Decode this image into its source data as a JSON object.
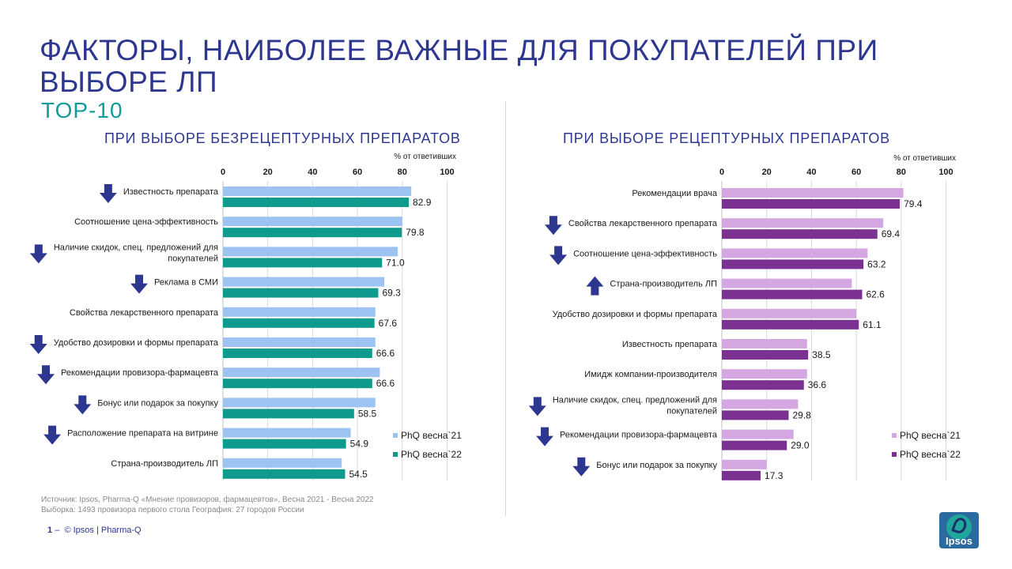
{
  "slide": {
    "title": "ФАКТОРЫ, НАИБОЛЕЕ ВАЖНЫЕ ДЛЯ ПОКУПАТЕЛЕЙ ПРИ ВЫБОРЕ ЛП",
    "subtitle": "TOP-10",
    "source": "Источник: Ipsos, Pharma-Q «Мнение провизоров, фармацевтов», Весна 2021 - Весна 2022",
    "sample": "Выборка: 1493 провизора первого стола  География: 27 городов России",
    "page_number": "1",
    "footer_sep": "–",
    "footer": "© Ipsos | Pharma-Q",
    "logo_text": "Ipsos"
  },
  "chart_data": [
    {
      "type": "bar",
      "orientation": "horizontal",
      "title": "ПРИ ВЫБОРЕ БЕЗРЕЦЕПТУРНЫХ ПРЕПАРАТОВ",
      "axis_unit": "%  от ответивших",
      "xlim": [
        0,
        100
      ],
      "ticks": [
        "0",
        "20",
        "40",
        "60",
        "80",
        "100"
      ],
      "grid": true,
      "legend_position": "bottom-right",
      "categories": [
        "Известность препарата",
        "Соотношение цена-эффективность",
        "Наличие скидок, спец. предложений для покупателей",
        "Реклама в СМИ",
        "Свойства лекарственного препарата",
        "Удобство дозировки и формы препарата",
        "Рекомендации провизора-фармацевта",
        "Бонус или подарок за покупку",
        "Расположение препарата на витрине",
        "Страна-производитель ЛП"
      ],
      "category_lines": [
        [
          "Известность препарата"
        ],
        [
          "Соотношение цена-эффективность"
        ],
        [
          "Наличие скидок, спец. предложений для",
          "покупателей"
        ],
        [
          "Реклама в СМИ"
        ],
        [
          "Свойства лекарственного препарата"
        ],
        [
          "Удобство дозировки и формы препарата"
        ],
        [
          "Рекомендации провизора-фармацевта"
        ],
        [
          "Бонус или подарок за покупку"
        ],
        [
          "Расположение препарата на витрине"
        ],
        [
          "Страна-производитель ЛП"
        ]
      ],
      "trend": [
        "down",
        "none",
        "down",
        "down",
        "none",
        "down",
        "down",
        "down",
        "down",
        "none"
      ],
      "series": [
        {
          "name": "PhQ весна`21",
          "color": "#9dc3f3",
          "values": [
            84,
            80,
            78,
            72,
            68,
            68,
            70,
            68,
            57,
            53
          ]
        },
        {
          "name": "PhQ весна`22",
          "color": "#0f9a8e",
          "values": [
            82.9,
            79.8,
            71.0,
            69.3,
            67.6,
            66.6,
            66.6,
            58.5,
            54.9,
            54.5
          ],
          "labels": [
            "82.9",
            "79.8",
            "71.0",
            "69.3",
            "67.6",
            "66.6",
            "66.6",
            "58.5",
            "54.9",
            "54.5"
          ]
        }
      ]
    },
    {
      "type": "bar",
      "orientation": "horizontal",
      "title": "ПРИ ВЫБОРЕ РЕЦЕПТУРНЫХ ПРЕПАРАТОВ",
      "axis_unit": "%  от ответивших",
      "xlim": [
        0,
        100
      ],
      "ticks": [
        "0",
        "20",
        "40",
        "60",
        "80",
        "100"
      ],
      "grid": true,
      "legend_position": "bottom-right",
      "categories": [
        "Рекомендации врача",
        "Свойства лекарственного препарата",
        "Соотношение цена-эффективность",
        "Страна-производитель ЛП",
        "Удобство дозировки и формы препарата",
        "Известность препарата",
        "Имидж компании-производителя",
        "Наличие скидок, спец. предложений для покупателей",
        "Рекомендации провизора-фармацевта",
        "Бонус или подарок за покупку"
      ],
      "category_lines": [
        [
          "Рекомендации врача"
        ],
        [
          "Свойства лекарственного препарата"
        ],
        [
          "Соотношение цена-эффективность"
        ],
        [
          "Страна-производитель ЛП"
        ],
        [
          "Удобство дозировки и формы препарата"
        ],
        [
          "Известность препарата"
        ],
        [
          "Имидж компании-производителя"
        ],
        [
          "Наличие скидок, спец. предложений для",
          "покупателей"
        ],
        [
          "Рекомендации провизора-фармацевта"
        ],
        [
          "Бонус или подарок за покупку"
        ]
      ],
      "trend": [
        "none",
        "down",
        "down",
        "up",
        "none",
        "none",
        "none",
        "down",
        "down",
        "down"
      ],
      "series": [
        {
          "name": "PhQ весна`21",
          "color": "#d4a6e2",
          "values": [
            81,
            72,
            65,
            58,
            60,
            38,
            38,
            34,
            32,
            20
          ]
        },
        {
          "name": "PhQ весна`22",
          "color": "#7a3192",
          "values": [
            79.4,
            69.4,
            63.2,
            62.6,
            61.1,
            38.5,
            36.6,
            29.8,
            29.0,
            17.3
          ],
          "labels": [
            "79.4",
            "69.4",
            "63.2",
            "62.6",
            "61.1",
            "38.5",
            "36.6",
            "29.8",
            "29.0",
            "17.3"
          ]
        }
      ]
    }
  ],
  "colors": {
    "title": "#2e3790",
    "subtitle": "#109d9a",
    "arrow": "#2e3790",
    "axis_text": "#1a1a1a"
  }
}
